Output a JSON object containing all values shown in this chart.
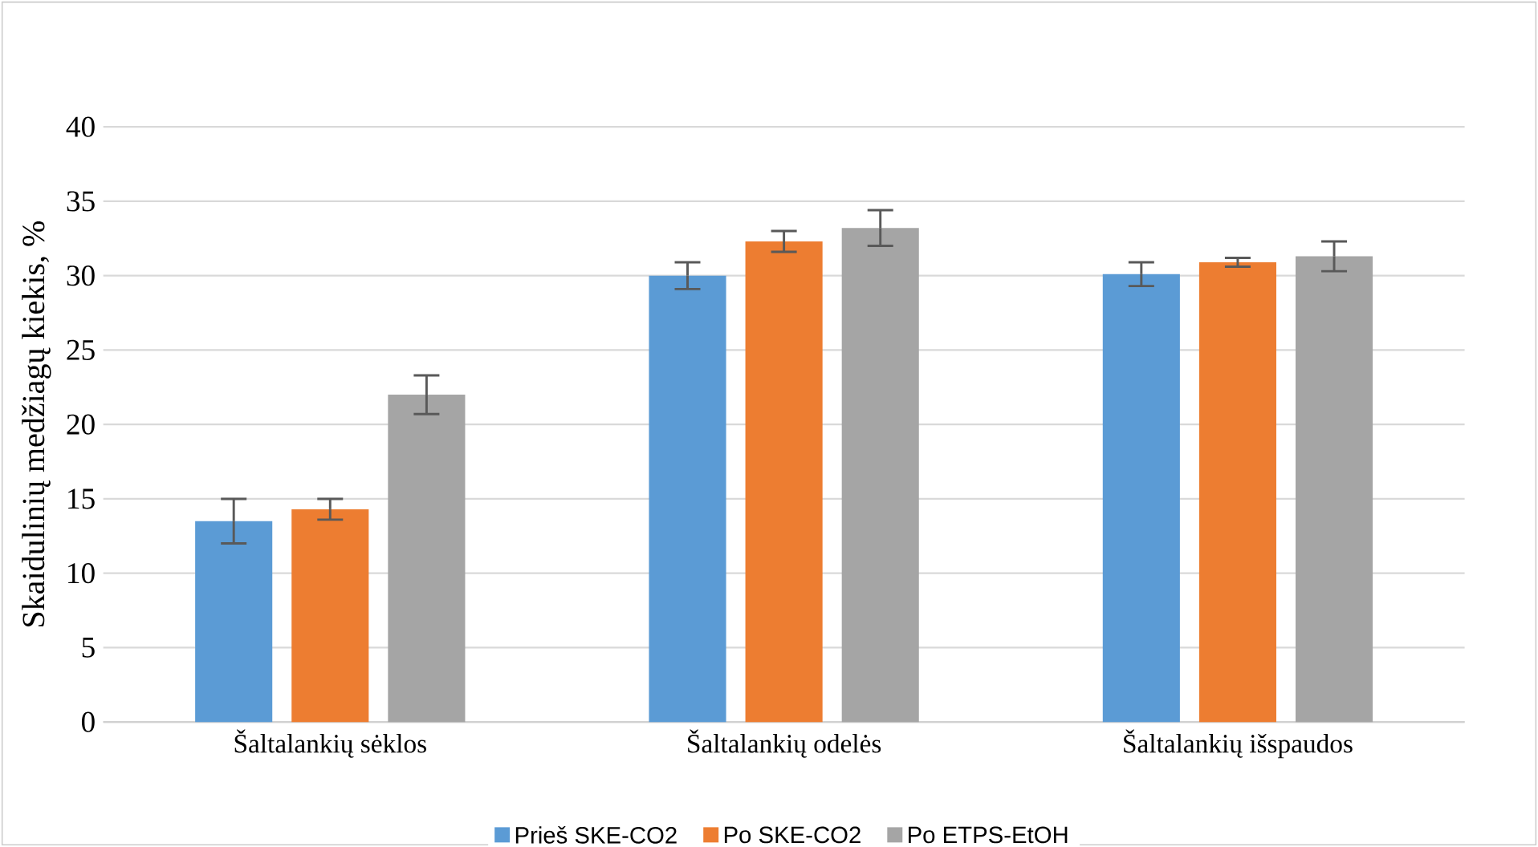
{
  "chart_data": {
    "type": "bar",
    "ylabel": "Skaidulinių medžiagų kiekis, %",
    "categories": [
      "Šaltalankių sėklos",
      "Šaltalankių odelės",
      "Šaltalankių išspaudos"
    ],
    "series": [
      {
        "name": "Prieš SKE-CO2",
        "color": "#5b9bd5",
        "values": [
          13.5,
          30.0,
          30.1
        ],
        "errors": [
          1.5,
          0.9,
          0.8
        ]
      },
      {
        "name": "Po SKE-CO2",
        "color": "#ed7d31",
        "values": [
          14.3,
          32.3,
          30.9
        ],
        "errors": [
          0.7,
          0.7,
          0.3
        ]
      },
      {
        "name": "Po ETPS-EtOH",
        "color": "#a5a5a5",
        "values": [
          22.0,
          33.2,
          31.3
        ],
        "errors": [
          1.3,
          1.2,
          1.0
        ]
      }
    ],
    "ylim": [
      0,
      40
    ],
    "yticks": [
      0,
      5,
      10,
      15,
      20,
      25,
      30,
      35,
      40
    ],
    "grid": "y",
    "legend": "bottom"
  }
}
